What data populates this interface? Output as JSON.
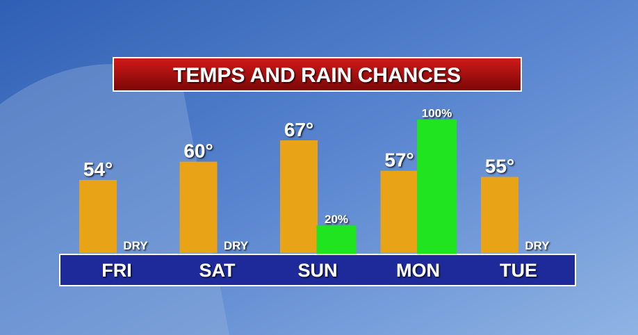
{
  "chart_data": {
    "type": "bar",
    "title": "TEMPS AND RAIN CHANCES",
    "categories": [
      "FRI",
      "SAT",
      "SUN",
      "MON",
      "TUE"
    ],
    "ylim": [
      30,
      80
    ],
    "y2lim": [
      0,
      115
    ],
    "series": [
      {
        "color": "#e8a317",
        "values": [
          54,
          60,
          67,
          57,
          55
        ],
        "value_labels": [
          "54°",
          "60°",
          "67°",
          "57°",
          "55°"
        ]
      },
      {
        "color": "#1fe41f",
        "axis": "y2",
        "values": [
          0,
          0,
          20,
          100,
          0
        ],
        "value_labels": [
          "DRY",
          "DRY",
          "20%",
          "100%",
          "DRY"
        ]
      }
    ]
  }
}
